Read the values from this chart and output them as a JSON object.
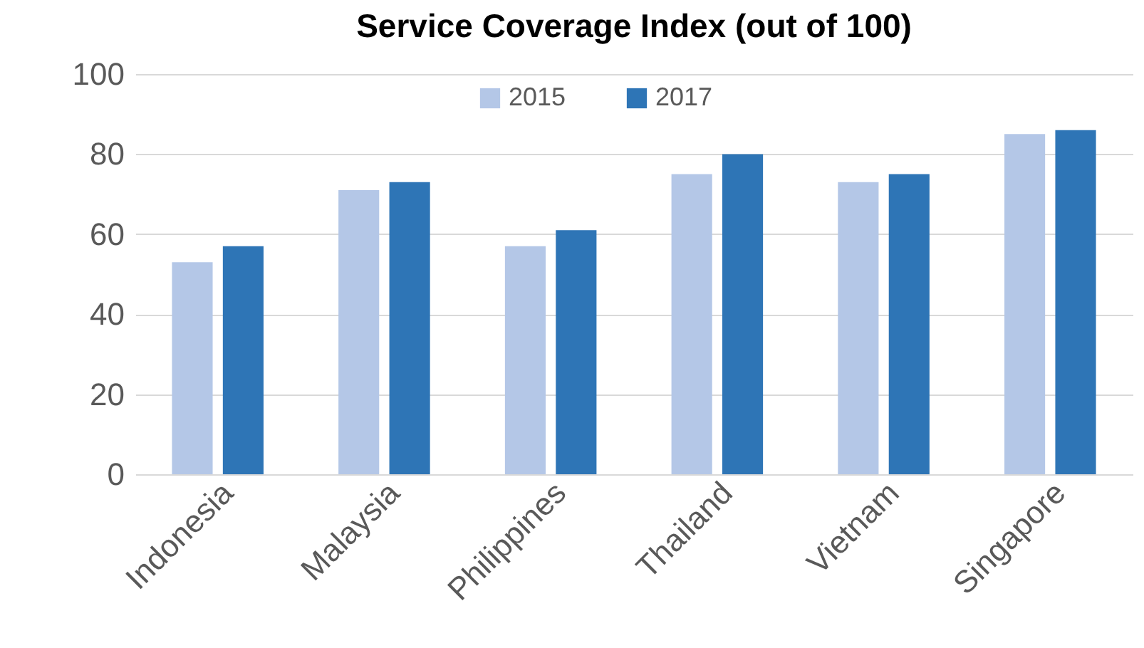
{
  "chart_data": {
    "type": "bar",
    "title": "Service Coverage Index (out of 100)",
    "categories": [
      "Indonesia",
      "Malaysia",
      "Philippines",
      "Thailand",
      "Vietnam",
      "Singapore"
    ],
    "series": [
      {
        "name": "2015",
        "color": "#b4c7e7",
        "values": [
          53,
          71,
          57,
          75,
          73,
          85
        ]
      },
      {
        "name": "2017",
        "color": "#2e75b6",
        "values": [
          57,
          73,
          61,
          80,
          75,
          86
        ]
      }
    ],
    "ylim": [
      0,
      100
    ],
    "yticks": [
      0,
      20,
      40,
      60,
      80,
      100
    ],
    "grid": "y",
    "legend": "top"
  }
}
